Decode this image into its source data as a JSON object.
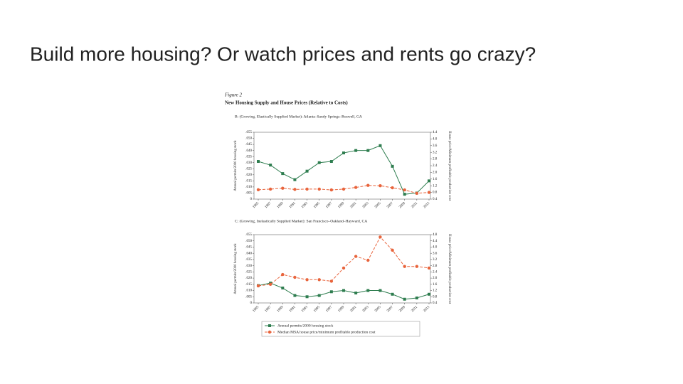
{
  "slide_title": "Build more housing? Or watch prices and rents go crazy?",
  "figure": {
    "label": "Figure 2",
    "title": "New Housing Supply and House Prices (Relative to Costs)"
  },
  "chart_data": [
    {
      "type": "line",
      "title": "B: (Growing, Elastically Supplied Market): Atlanta–Sandy Springs–Roswell, GA",
      "y_label": "Annual permits/2000 housing stock",
      "y2_label": "House price/Minimum profitable production cost",
      "categories": [
        "1985",
        "1987",
        "1989",
        "1991",
        "1993",
        "1995",
        "1997",
        "1999",
        "2001",
        "2003",
        "2005",
        "2007",
        "2009",
        "2011",
        "2013"
      ],
      "ylim": [
        0,
        0.055
      ],
      "yticks": [
        0,
        {
          "value": 0.005,
          "label": ".005"
        },
        {
          "value": 0.01,
          "label": ".010"
        },
        {
          "value": 0.015,
          "label": ".015"
        },
        {
          "value": 0.02,
          "label": ".020"
        },
        {
          "value": 0.025,
          "label": ".025"
        },
        {
          "value": 0.03,
          "label": ".030"
        },
        {
          "value": 0.035,
          "label": ".035"
        },
        {
          "value": 0.04,
          "label": ".040"
        },
        {
          "value": 0.045,
          "label": ".045"
        },
        {
          "value": 0.05,
          "label": ".050"
        },
        {
          "value": 0.055,
          "label": ".055"
        }
      ],
      "y2lim": [
        0.4,
        4.4
      ],
      "y2ticks": [
        0.4,
        0.8,
        1.2,
        1.6,
        {
          "value": 2,
          "label": "2.0"
        },
        2.4,
        2.8,
        3.2,
        3.6,
        {
          "value": 4,
          "label": "4.0"
        },
        4.4
      ],
      "series": [
        {
          "color": "#2e7d4f",
          "marker": "square",
          "line_style": "solid",
          "values": [
            0.031,
            0.028,
            0.021,
            0.016,
            0.023,
            0.03,
            0.031,
            0.038,
            0.04,
            0.04,
            0.044,
            0.027,
            0.004,
            0.005,
            0.015
          ]
        },
        {
          "color": "#e8643c",
          "marker": "circle",
          "line_style": "dashed",
          "axis": "y2",
          "values": [
            0.96,
            1.0,
            1.05,
            0.98,
            1.0,
            1.0,
            0.95,
            1.0,
            1.1,
            1.22,
            1.2,
            1.08,
            0.95,
            0.75,
            0.8
          ]
        }
      ]
    },
    {
      "type": "line",
      "title": "C: (Growing, Inelastically Supplied Market): San Francisco–Oakland–Hayward, CA",
      "y_label": "Annual permits/2000 housing stock",
      "y2_label": "House price/Minimum profitable production cost",
      "categories": [
        "1985",
        "1987",
        "1989",
        "1991",
        "1993",
        "1995",
        "1997",
        "1999",
        "2001",
        "2003",
        "2005",
        "2007",
        "2009",
        "2011",
        "2013"
      ],
      "ylim": [
        0,
        0.055
      ],
      "yticks": [
        0,
        {
          "value": 0.005,
          "label": ".005"
        },
        {
          "value": 0.01,
          "label": ".010"
        },
        {
          "value": 0.015,
          "label": ".015"
        },
        {
          "value": 0.02,
          "label": ".020"
        },
        {
          "value": 0.025,
          "label": ".025"
        },
        {
          "value": 0.03,
          "label": ".030"
        },
        {
          "value": 0.035,
          "label": ".035"
        },
        {
          "value": 0.04,
          "label": ".040"
        },
        {
          "value": 0.045,
          "label": ".045"
        },
        {
          "value": 0.05,
          "label": ".050"
        },
        {
          "value": 0.055,
          "label": ".055"
        }
      ],
      "y2lim": [
        0.4,
        4.8
      ],
      "y2ticks": [
        0.4,
        0.8,
        1.2,
        1.6,
        {
          "value": 2,
          "label": "2.0"
        },
        2.4,
        2.8,
        3.2,
        3.6,
        {
          "value": 4,
          "label": "4.0"
        },
        4.4,
        4.8
      ],
      "series": [
        {
          "name": "Annual permits/2000 housing stock",
          "color": "#2e7d4f",
          "marker": "square",
          "line_style": "solid",
          "values": [
            0.014,
            0.016,
            0.012,
            0.006,
            0.005,
            0.006,
            0.009,
            0.01,
            0.008,
            0.01,
            0.01,
            0.007,
            0.003,
            0.004,
            0.007
          ]
        },
        {
          "name": "Median MSA house price/minimum profitable production cost",
          "color": "#e8643c",
          "marker": "circle",
          "line_style": "dashed",
          "axis": "y2",
          "values": [
            1.5,
            1.6,
            2.23,
            2.05,
            1.9,
            1.9,
            1.8,
            2.65,
            3.4,
            3.15,
            4.65,
            3.8,
            2.75,
            2.75,
            2.65
          ]
        }
      ]
    }
  ]
}
